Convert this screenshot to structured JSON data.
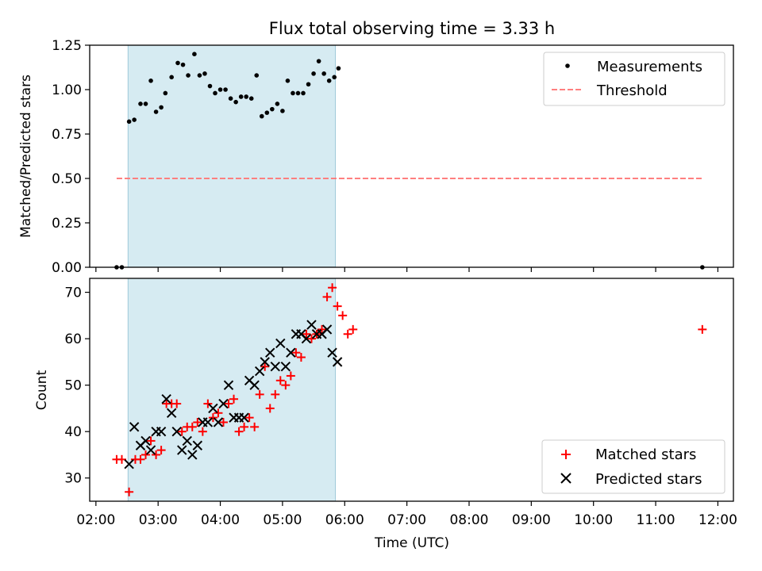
{
  "chart_data": [
    {
      "type": "scatter",
      "title": "Flux total observing time = 3.33 h",
      "ylabel": "Matched/Predicted stars",
      "xlabel": "",
      "ylim": [
        0,
        1.25
      ],
      "yticks": [
        "0.00",
        "0.25",
        "0.50",
        "0.75",
        "1.00",
        "1.25"
      ],
      "xlim_hours": [
        1.9,
        12.25
      ],
      "xticks": [
        "02:00",
        "03:00",
        "04:00",
        "05:00",
        "06:00",
        "07:00",
        "08:00",
        "09:00",
        "10:00",
        "11:00",
        "12:00"
      ],
      "observing_window": [
        "02:31",
        "05:51"
      ],
      "threshold": {
        "name": "Threshold",
        "value": 0.5,
        "x_range": [
          "02:20",
          "11:45"
        ],
        "color": "#ff7f7f"
      },
      "series": [
        {
          "name": "Measurements",
          "color": "#000000",
          "points": [
            [
              "02:20",
              0.0
            ],
            [
              "02:25",
              0.0
            ],
            [
              "02:32",
              0.82
            ],
            [
              "02:37",
              0.83
            ],
            [
              "02:43",
              0.92
            ],
            [
              "02:48",
              0.92
            ],
            [
              "02:53",
              1.05
            ],
            [
              "02:58",
              0.875
            ],
            [
              "03:03",
              0.9
            ],
            [
              "03:07",
              0.98
            ],
            [
              "03:13",
              1.07
            ],
            [
              "03:19",
              1.15
            ],
            [
              "03:24",
              1.14
            ],
            [
              "03:29",
              1.08
            ],
            [
              "03:35",
              1.2
            ],
            [
              "03:40",
              1.08
            ],
            [
              "03:45",
              1.09
            ],
            [
              "03:50",
              1.02
            ],
            [
              "03:55",
              0.98
            ],
            [
              "04:00",
              1.0
            ],
            [
              "04:05",
              1.0
            ],
            [
              "04:10",
              0.95
            ],
            [
              "04:15",
              0.93
            ],
            [
              "04:20",
              0.96
            ],
            [
              "04:25",
              0.96
            ],
            [
              "04:30",
              0.95
            ],
            [
              "04:35",
              1.08
            ],
            [
              "04:40",
              0.85
            ],
            [
              "04:45",
              0.87
            ],
            [
              "04:50",
              0.89
            ],
            [
              "04:55",
              0.92
            ],
            [
              "05:00",
              0.88
            ],
            [
              "05:05",
              1.05
            ],
            [
              "05:10",
              0.98
            ],
            [
              "05:15",
              0.98
            ],
            [
              "05:20",
              0.98
            ],
            [
              "05:25",
              1.03
            ],
            [
              "05:30",
              1.09
            ],
            [
              "05:35",
              1.16
            ],
            [
              "05:40",
              1.09
            ],
            [
              "05:45",
              1.05
            ],
            [
              "05:50",
              1.07
            ],
            [
              "05:54",
              1.12
            ],
            [
              "11:45",
              0.0
            ]
          ]
        }
      ],
      "legend": "top-right"
    },
    {
      "type": "scatter",
      "title": "",
      "ylabel": "Count",
      "xlabel": "Time (UTC)",
      "ylim": [
        25,
        73
      ],
      "yticks": [
        "30",
        "40",
        "50",
        "60",
        "70"
      ],
      "xlim_hours": [
        1.9,
        12.25
      ],
      "xticks": [
        "02:00",
        "03:00",
        "04:00",
        "05:00",
        "06:00",
        "07:00",
        "08:00",
        "09:00",
        "10:00",
        "11:00",
        "12:00"
      ],
      "observing_window": [
        "02:31",
        "05:51"
      ],
      "series": [
        {
          "name": "Matched stars",
          "marker": "+",
          "color": "#ff0000",
          "points": [
            [
              "02:20",
              34
            ],
            [
              "02:25",
              34
            ],
            [
              "02:32",
              27
            ],
            [
              "02:38",
              34
            ],
            [
              "02:43",
              34
            ],
            [
              "02:48",
              35
            ],
            [
              "02:53",
              38
            ],
            [
              "02:58",
              35
            ],
            [
              "03:03",
              36
            ],
            [
              "03:08",
              46
            ],
            [
              "03:13",
              46
            ],
            [
              "03:18",
              46
            ],
            [
              "03:23",
              40
            ],
            [
              "03:28",
              41
            ],
            [
              "03:33",
              41
            ],
            [
              "03:38",
              42
            ],
            [
              "03:43",
              40
            ],
            [
              "03:48",
              46
            ],
            [
              "03:53",
              43
            ],
            [
              "03:58",
              44
            ],
            [
              "04:03",
              42
            ],
            [
              "04:08",
              46
            ],
            [
              "04:13",
              47
            ],
            [
              "04:18",
              40
            ],
            [
              "04:23",
              41
            ],
            [
              "04:28",
              43
            ],
            [
              "04:33",
              41
            ],
            [
              "04:38",
              48
            ],
            [
              "04:43",
              54
            ],
            [
              "04:48",
              45
            ],
            [
              "04:53",
              48
            ],
            [
              "04:58",
              51
            ],
            [
              "05:03",
              50
            ],
            [
              "05:08",
              52
            ],
            [
              "05:13",
              57
            ],
            [
              "05:18",
              56
            ],
            [
              "05:23",
              61
            ],
            [
              "05:28",
              60
            ],
            [
              "05:33",
              61
            ],
            [
              "05:38",
              62
            ],
            [
              "05:43",
              69
            ],
            [
              "05:48",
              71
            ],
            [
              "05:53",
              67
            ],
            [
              "05:58",
              65
            ],
            [
              "06:03",
              61
            ],
            [
              "06:08",
              62
            ],
            [
              "11:45",
              62
            ]
          ]
        },
        {
          "name": "Predicted stars",
          "marker": "x",
          "color": "#000000",
          "points": [
            [
              "02:32",
              33
            ],
            [
              "02:37",
              41
            ],
            [
              "02:43",
              37
            ],
            [
              "02:48",
              38
            ],
            [
              "02:53",
              36
            ],
            [
              "02:58",
              40
            ],
            [
              "03:03",
              40
            ],
            [
              "03:08",
              47
            ],
            [
              "03:13",
              44
            ],
            [
              "03:18",
              40
            ],
            [
              "03:23",
              36
            ],
            [
              "03:28",
              38
            ],
            [
              "03:33",
              35
            ],
            [
              "03:38",
              37
            ],
            [
              "03:43",
              42
            ],
            [
              "03:48",
              42
            ],
            [
              "03:53",
              45
            ],
            [
              "03:58",
              42
            ],
            [
              "04:03",
              46
            ],
            [
              "04:08",
              50
            ],
            [
              "04:13",
              43
            ],
            [
              "04:18",
              43
            ],
            [
              "04:23",
              43
            ],
            [
              "04:28",
              51
            ],
            [
              "04:33",
              50
            ],
            [
              "04:38",
              53
            ],
            [
              "04:43",
              55
            ],
            [
              "04:48",
              57
            ],
            [
              "04:53",
              54
            ],
            [
              "04:58",
              59
            ],
            [
              "05:03",
              54
            ],
            [
              "05:08",
              57
            ],
            [
              "05:13",
              61
            ],
            [
              "05:18",
              61
            ],
            [
              "05:23",
              60
            ],
            [
              "05:28",
              63
            ],
            [
              "05:33",
              61
            ],
            [
              "05:38",
              61
            ],
            [
              "05:43",
              62
            ],
            [
              "05:48",
              57
            ],
            [
              "05:53",
              55
            ]
          ]
        }
      ],
      "legend": "bottom-right"
    }
  ]
}
